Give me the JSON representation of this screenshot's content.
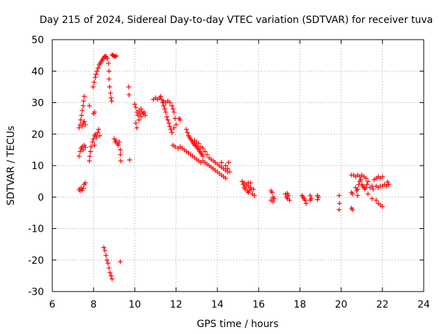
{
  "chart_data": {
    "type": "scatter",
    "title": "Day 215 of 2024, Sidereal Day-to-day VTEC variation (SDTVAR) for receiver tuva",
    "xlabel": "GPS time / hours",
    "ylabel": "SDTVAR / TECUs",
    "xlim": [
      6,
      24
    ],
    "ylim": [
      -30,
      50
    ],
    "xticks": [
      "6",
      "8",
      "10",
      "12",
      "14",
      "16",
      "18",
      "20",
      "22",
      "24"
    ],
    "yticks": [
      "-30",
      "-20",
      "-10",
      "0",
      "10",
      "20",
      "30",
      "40",
      "50"
    ],
    "grid": true,
    "marker": "+",
    "color": "#ff0000",
    "series": [
      {
        "name": "SDTVAR",
        "points": [
          [
            7.3,
            2.5
          ],
          [
            7.35,
            2.0
          ],
          [
            7.4,
            3.0
          ],
          [
            7.45,
            2.2
          ],
          [
            7.5,
            2.8
          ],
          [
            7.55,
            4.0
          ],
          [
            7.6,
            4.5
          ],
          [
            7.3,
            13.0
          ],
          [
            7.35,
            14.5
          ],
          [
            7.4,
            15.5
          ],
          [
            7.45,
            16.0
          ],
          [
            7.5,
            15.0
          ],
          [
            7.55,
            16.5
          ],
          [
            7.6,
            15.8
          ],
          [
            7.3,
            22.0
          ],
          [
            7.35,
            23.0
          ],
          [
            7.38,
            24.5
          ],
          [
            7.42,
            26.0
          ],
          [
            7.45,
            27.5
          ],
          [
            7.5,
            29.0
          ],
          [
            7.52,
            30.5
          ],
          [
            7.55,
            32.0
          ],
          [
            7.45,
            22.5
          ],
          [
            7.5,
            23.5
          ],
          [
            7.55,
            24.0
          ],
          [
            7.6,
            23.0
          ],
          [
            7.8,
            11.5
          ],
          [
            7.82,
            13.0
          ],
          [
            7.85,
            14.5
          ],
          [
            7.88,
            16.0
          ],
          [
            7.8,
            29.0
          ],
          [
            8.0,
            26.5
          ],
          [
            8.05,
            27.0
          ],
          [
            7.95,
            17.5
          ],
          [
            8.0,
            18.5
          ],
          [
            8.05,
            19.5
          ],
          [
            8.1,
            20.0
          ],
          [
            8.15,
            19.0
          ],
          [
            8.2,
            20.5
          ],
          [
            8.25,
            21.5
          ],
          [
            8.3,
            19.5
          ],
          [
            8.05,
            16.5
          ],
          [
            7.98,
            35.0
          ],
          [
            8.03,
            36.5
          ],
          [
            8.08,
            38.0
          ],
          [
            8.12,
            39.0
          ],
          [
            8.17,
            40.0
          ],
          [
            8.22,
            41.0
          ],
          [
            8.27,
            42.0
          ],
          [
            8.32,
            42.5
          ],
          [
            8.37,
            43.0
          ],
          [
            8.42,
            43.5
          ],
          [
            8.47,
            44.0
          ],
          [
            8.52,
            44.5
          ],
          [
            8.57,
            44.8
          ],
          [
            8.62,
            44.5
          ],
          [
            8.67,
            44.0
          ],
          [
            8.72,
            42.5
          ],
          [
            8.75,
            40.0
          ],
          [
            8.75,
            37.5
          ],
          [
            8.78,
            35.0
          ],
          [
            8.82,
            33.0
          ],
          [
            8.85,
            31.5
          ],
          [
            8.88,
            30.5
          ],
          [
            8.9,
            45.2
          ],
          [
            8.95,
            45.0
          ],
          [
            9.0,
            44.8
          ],
          [
            9.05,
            44.6
          ],
          [
            9.1,
            44.9
          ],
          [
            9.0,
            18.5
          ],
          [
            9.05,
            17.5
          ],
          [
            9.1,
            18.0
          ],
          [
            9.15,
            17.0
          ],
          [
            9.2,
            16.5
          ],
          [
            9.25,
            17.5
          ],
          [
            9.3,
            13.5
          ],
          [
            9.32,
            11.5
          ],
          [
            9.3,
            15.0
          ],
          [
            8.5,
            -16.0
          ],
          [
            8.55,
            -17.0
          ],
          [
            8.6,
            -18.5
          ],
          [
            8.65,
            -20.0
          ],
          [
            8.7,
            -21.0
          ],
          [
            8.75,
            -22.5
          ],
          [
            8.8,
            -24.0
          ],
          [
            8.85,
            -25.0
          ],
          [
            8.9,
            -26.0
          ],
          [
            9.3,
            -20.5
          ],
          [
            9.7,
            35.0
          ],
          [
            9.72,
            32.5
          ],
          [
            9.75,
            11.8
          ],
          [
            10.0,
            29.5
          ],
          [
            10.05,
            28.5
          ],
          [
            10.1,
            27.0
          ],
          [
            10.15,
            26.0
          ],
          [
            10.2,
            27.5
          ],
          [
            10.25,
            26.5
          ],
          [
            10.3,
            28.0
          ],
          [
            10.35,
            27.0
          ],
          [
            10.4,
            26.5
          ],
          [
            10.45,
            27.0
          ],
          [
            10.5,
            26.0
          ],
          [
            10.05,
            23.5
          ],
          [
            10.1,
            22.0
          ],
          [
            10.2,
            24.5
          ],
          [
            10.3,
            25.5
          ],
          [
            10.9,
            31.0
          ],
          [
            11.0,
            31.5
          ],
          [
            11.1,
            31.0
          ],
          [
            11.2,
            31.5
          ],
          [
            11.25,
            32.0
          ],
          [
            11.3,
            31.0
          ],
          [
            11.35,
            30.0
          ],
          [
            11.4,
            29.0
          ],
          [
            11.45,
            28.0
          ],
          [
            11.5,
            27.0
          ],
          [
            11.55,
            25.5
          ],
          [
            11.6,
            24.5
          ],
          [
            11.65,
            23.5
          ],
          [
            11.7,
            22.5
          ],
          [
            11.75,
            21.5
          ],
          [
            11.8,
            20.5
          ],
          [
            11.4,
            30.5
          ],
          [
            11.5,
            30.0
          ],
          [
            11.6,
            30.5
          ],
          [
            11.7,
            30.0
          ],
          [
            11.8,
            29.0
          ],
          [
            11.85,
            28.0
          ],
          [
            11.9,
            27.0
          ],
          [
            11.95,
            25.0
          ],
          [
            12.0,
            23.0
          ],
          [
            11.9,
            22.0
          ],
          [
            12.15,
            25.0
          ],
          [
            12.2,
            24.5
          ],
          [
            11.85,
            16.5
          ],
          [
            11.95,
            16.0
          ],
          [
            12.1,
            15.5
          ],
          [
            12.2,
            16.0
          ],
          [
            12.3,
            15.5
          ],
          [
            12.4,
            15.0
          ],
          [
            12.5,
            14.5
          ],
          [
            12.6,
            14.0
          ],
          [
            12.7,
            13.5
          ],
          [
            12.8,
            13.0
          ],
          [
            12.9,
            12.5
          ],
          [
            13.0,
            12.0
          ],
          [
            13.1,
            11.5
          ],
          [
            13.2,
            11.0
          ],
          [
            13.3,
            11.5
          ],
          [
            13.4,
            11.0
          ],
          [
            13.5,
            10.5
          ],
          [
            13.6,
            10.0
          ],
          [
            13.7,
            9.5
          ],
          [
            13.8,
            9.0
          ],
          [
            13.9,
            8.5
          ],
          [
            14.0,
            8.0
          ],
          [
            14.1,
            7.5
          ],
          [
            14.2,
            7.0
          ],
          [
            14.3,
            6.5
          ],
          [
            14.4,
            6.0
          ],
          [
            12.5,
            21.5
          ],
          [
            12.55,
            20.5
          ],
          [
            12.6,
            19.5
          ],
          [
            12.65,
            19.0
          ],
          [
            12.7,
            18.5
          ],
          [
            12.75,
            18.0
          ],
          [
            12.8,
            17.5
          ],
          [
            12.85,
            17.0
          ],
          [
            12.9,
            16.5
          ],
          [
            12.95,
            16.5
          ],
          [
            13.0,
            16.0
          ],
          [
            13.05,
            15.5
          ],
          [
            13.1,
            15.0
          ],
          [
            13.15,
            14.5
          ],
          [
            13.2,
            14.0
          ],
          [
            13.25,
            13.5
          ],
          [
            13.3,
            13.0
          ],
          [
            12.9,
            18.0
          ],
          [
            13.0,
            17.5
          ],
          [
            13.1,
            17.0
          ],
          [
            13.2,
            16.0
          ],
          [
            13.3,
            15.5
          ],
          [
            13.4,
            14.5
          ],
          [
            13.5,
            13.5
          ],
          [
            13.6,
            12.5
          ],
          [
            13.7,
            12.0
          ],
          [
            13.8,
            11.5
          ],
          [
            13.9,
            11.0
          ],
          [
            14.0,
            10.5
          ],
          [
            14.1,
            10.0
          ],
          [
            14.2,
            9.5
          ],
          [
            14.3,
            9.0
          ],
          [
            14.4,
            8.5
          ],
          [
            14.5,
            8.0
          ],
          [
            14.2,
            11.0
          ],
          [
            14.4,
            10.0
          ],
          [
            14.5,
            9.0
          ],
          [
            14.6,
            8.0
          ],
          [
            14.55,
            11.0
          ],
          [
            15.2,
            5.0
          ],
          [
            15.25,
            4.0
          ],
          [
            15.3,
            3.0
          ],
          [
            15.35,
            2.5
          ],
          [
            15.4,
            3.5
          ],
          [
            15.45,
            2.0
          ],
          [
            15.5,
            1.5
          ],
          [
            15.55,
            2.0
          ],
          [
            15.3,
            4.5
          ],
          [
            15.4,
            4.0
          ],
          [
            15.5,
            3.5
          ],
          [
            15.6,
            3.0
          ],
          [
            15.65,
            2.5
          ],
          [
            15.7,
            1.0
          ],
          [
            15.5,
            4.5
          ],
          [
            15.6,
            4.5
          ],
          [
            15.75,
            2.5
          ],
          [
            15.8,
            0.5
          ],
          [
            16.6,
            2.0
          ],
          [
            16.65,
            1.5
          ],
          [
            16.7,
            0.0
          ],
          [
            16.75,
            -0.5
          ],
          [
            16.7,
            -1.5
          ],
          [
            16.6,
            -1.0
          ],
          [
            17.3,
            1.0
          ],
          [
            17.35,
            0.0
          ],
          [
            17.4,
            -0.5
          ],
          [
            17.45,
            0.5
          ],
          [
            17.5,
            -1.0
          ],
          [
            17.4,
            1.2
          ],
          [
            18.1,
            0.5
          ],
          [
            18.15,
            0.0
          ],
          [
            18.2,
            -0.5
          ],
          [
            18.25,
            -1.0
          ],
          [
            18.3,
            -2.0
          ],
          [
            18.5,
            0.5
          ],
          [
            18.55,
            -0.5
          ],
          [
            18.5,
            -1.0
          ],
          [
            18.85,
            0.5
          ],
          [
            18.9,
            0.0
          ],
          [
            18.85,
            -0.8
          ],
          [
            19.9,
            0.5
          ],
          [
            19.92,
            -2.0
          ],
          [
            19.9,
            -4.0
          ],
          [
            20.5,
            1.5
          ],
          [
            20.55,
            1.0
          ],
          [
            20.5,
            -3.5
          ],
          [
            20.55,
            -4.0
          ],
          [
            20.5,
            7.0
          ],
          [
            20.6,
            7.0
          ],
          [
            20.7,
            6.5
          ],
          [
            20.8,
            7.0
          ],
          [
            20.9,
            6.5
          ],
          [
            21.0,
            7.0
          ],
          [
            21.1,
            6.5
          ],
          [
            21.2,
            6.0
          ],
          [
            20.7,
            3.0
          ],
          [
            20.75,
            2.0
          ],
          [
            20.8,
            2.5
          ],
          [
            20.85,
            4.0
          ],
          [
            20.9,
            5.0
          ],
          [
            20.95,
            5.5
          ],
          [
            21.0,
            4.0
          ],
          [
            21.05,
            3.5
          ],
          [
            21.1,
            3.0
          ],
          [
            21.15,
            2.5
          ],
          [
            21.2,
            3.0
          ],
          [
            21.25,
            4.0
          ],
          [
            21.3,
            5.0
          ],
          [
            20.8,
            0.5
          ],
          [
            21.3,
            1.0
          ],
          [
            21.5,
            -0.5
          ],
          [
            21.6,
            5.5
          ],
          [
            21.7,
            6.0
          ],
          [
            21.8,
            6.5
          ],
          [
            21.9,
            6.0
          ],
          [
            22.0,
            6.5
          ],
          [
            21.7,
            3.5
          ],
          [
            21.8,
            3.0
          ],
          [
            21.9,
            3.5
          ],
          [
            22.0,
            3.5
          ],
          [
            22.1,
            4.0
          ],
          [
            22.2,
            3.5
          ],
          [
            22.3,
            4.0
          ],
          [
            22.25,
            4.8
          ],
          [
            21.7,
            -1.0
          ],
          [
            21.8,
            -2.0
          ],
          [
            21.9,
            -2.5
          ],
          [
            22.0,
            -3.0
          ],
          [
            21.4,
            3.0
          ],
          [
            21.5,
            3.5
          ],
          [
            21.55,
            2.5
          ]
        ]
      }
    ]
  }
}
